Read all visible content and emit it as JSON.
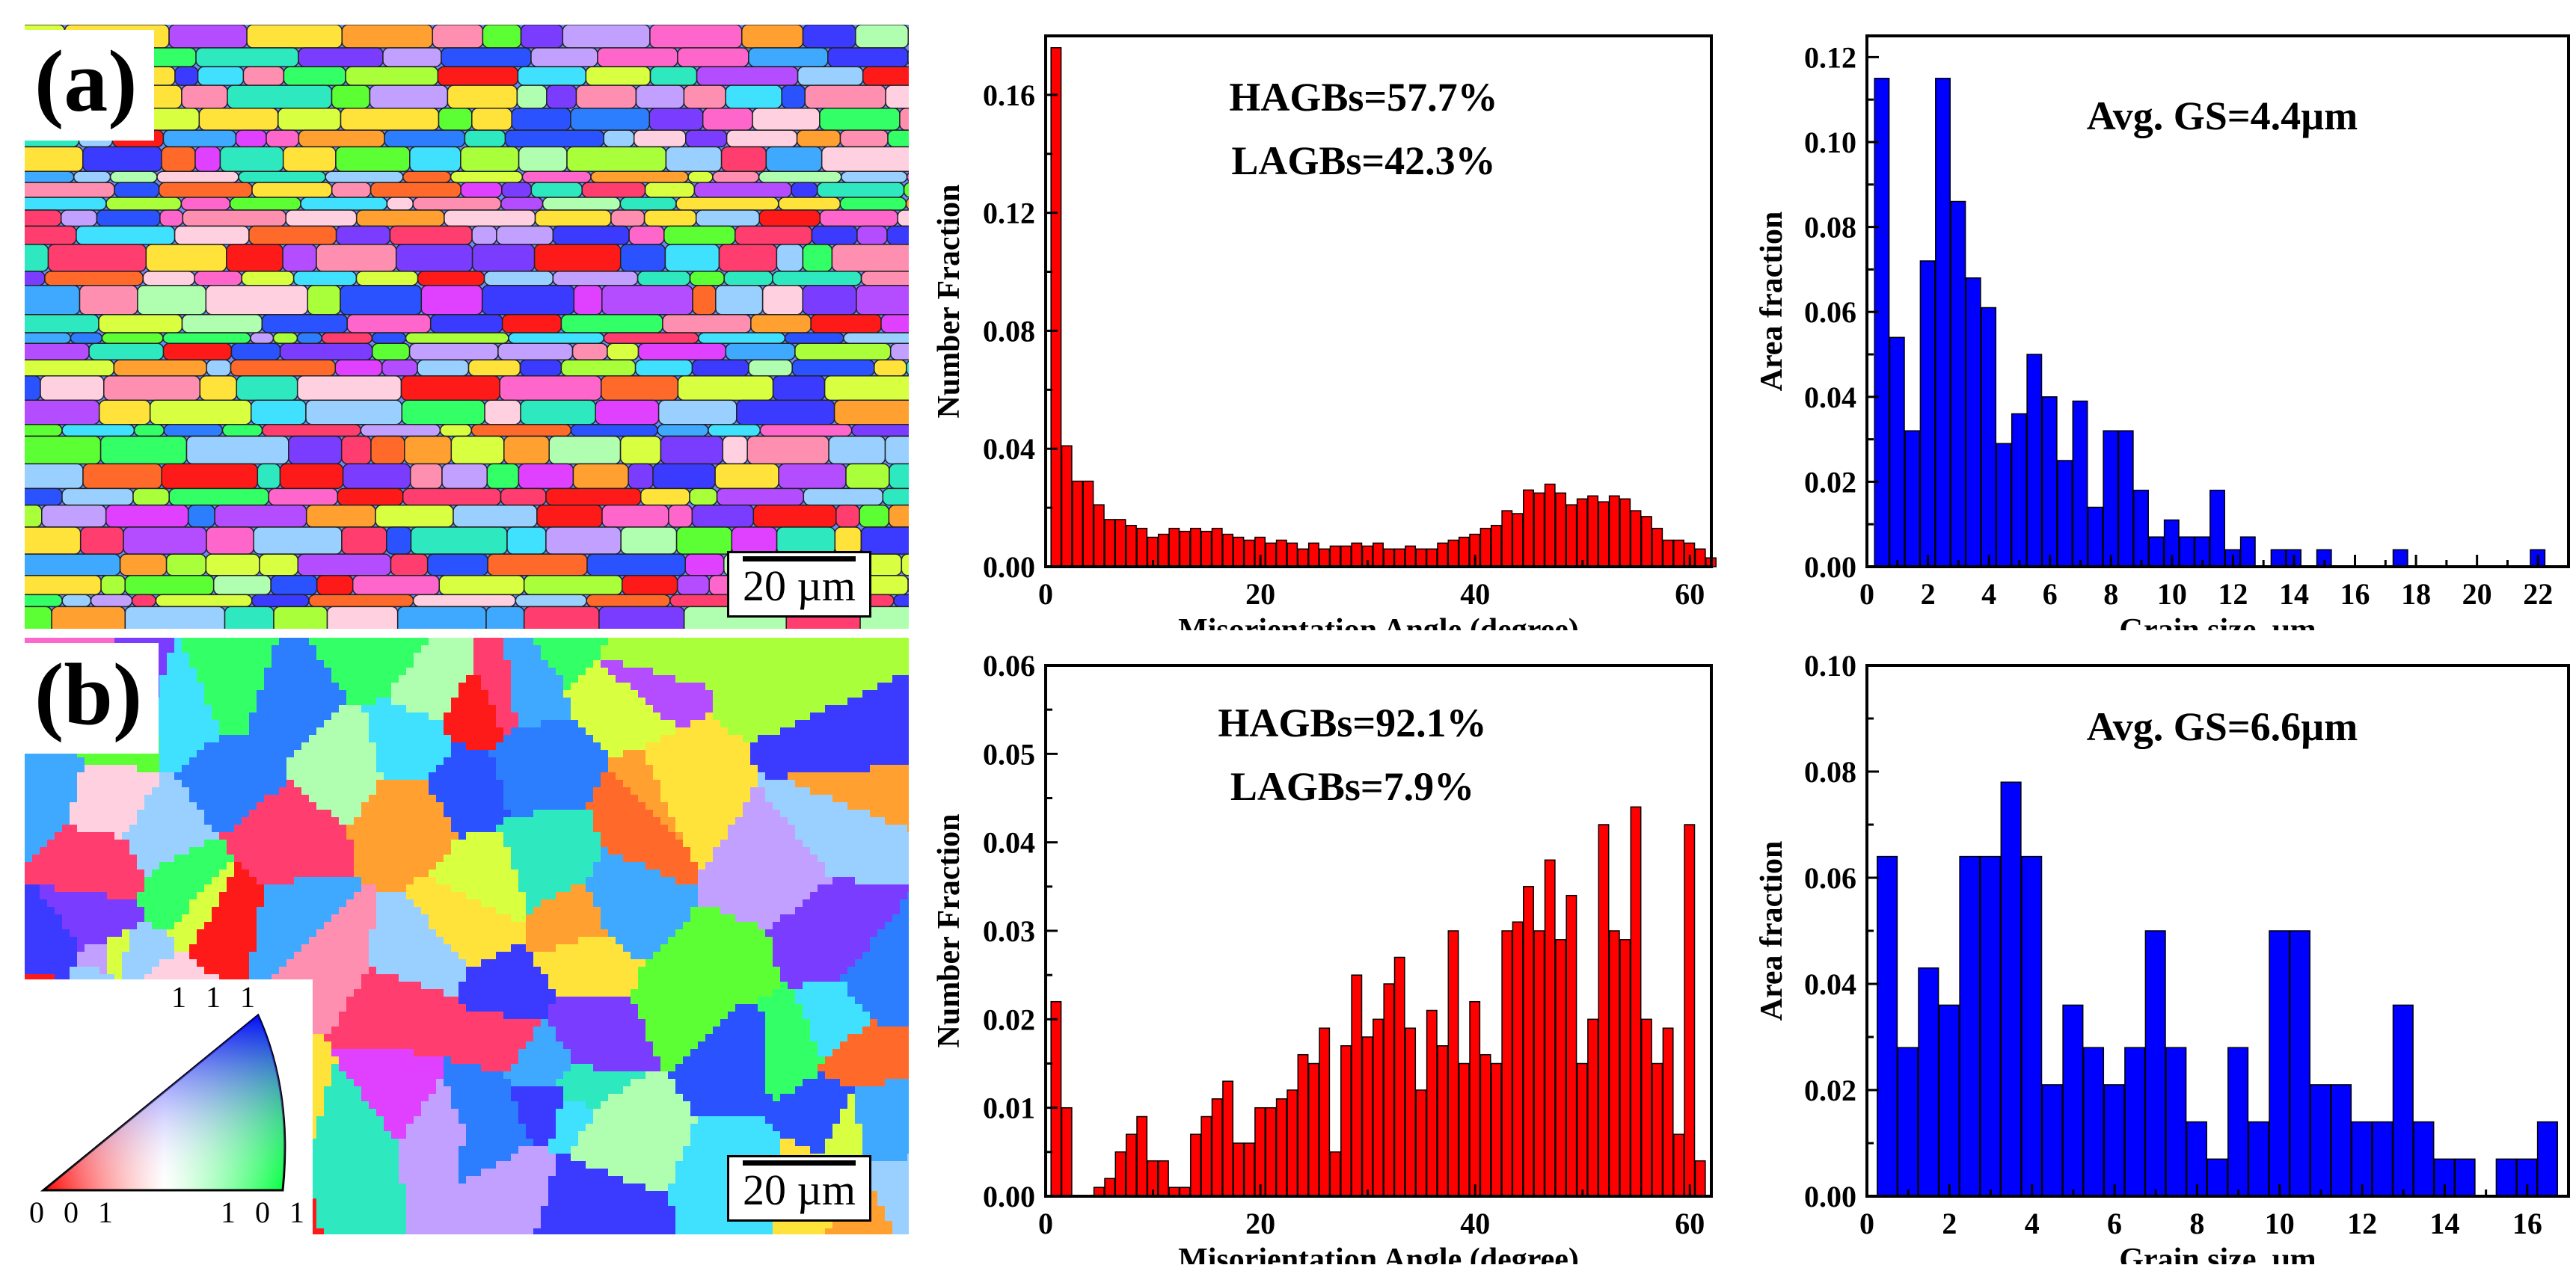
{
  "panels": {
    "a": {
      "label": "(a)",
      "scale_bar": "20 µm"
    },
    "b": {
      "label": "(b)",
      "scale_bar": "20 µm"
    }
  },
  "ipf_legend": {
    "top": "1 1 1",
    "left": "0 0 1",
    "right": "1 0 1"
  },
  "colors": {
    "red_bars": "#ff0000",
    "blue_bars": "#0000ff",
    "axis": "#000000"
  },
  "chart_data": [
    {
      "id": "chart-a-misorientation",
      "type": "bar",
      "xlabel": "Misorientation Angle (degree)",
      "ylabel": "Number Fraction",
      "annotations": [
        "HAGBs=57.7%",
        "LAGBs=42.3%"
      ],
      "xlim": [
        0,
        62
      ],
      "ylim": [
        0,
        0.18
      ],
      "xticks": [
        0,
        20,
        40,
        60
      ],
      "xtick_labels": [
        "0",
        "20",
        "40",
        "60"
      ],
      "yticks": [
        0.0,
        0.04,
        0.08,
        0.12,
        0.16
      ],
      "ytick_labels": [
        "0.00",
        "0.04",
        "0.08",
        "0.12",
        "0.16"
      ],
      "bin_start": 1,
      "bin_width": 1,
      "values": [
        0.176,
        0.041,
        0.029,
        0.029,
        0.021,
        0.016,
        0.016,
        0.014,
        0.013,
        0.01,
        0.011,
        0.013,
        0.012,
        0.013,
        0.012,
        0.013,
        0.011,
        0.01,
        0.009,
        0.01,
        0.008,
        0.009,
        0.008,
        0.006,
        0.008,
        0.006,
        0.007,
        0.007,
        0.008,
        0.007,
        0.008,
        0.006,
        0.006,
        0.007,
        0.006,
        0.006,
        0.008,
        0.009,
        0.01,
        0.011,
        0.013,
        0.014,
        0.019,
        0.018,
        0.026,
        0.025,
        0.028,
        0.025,
        0.021,
        0.023,
        0.024,
        0.022,
        0.024,
        0.023,
        0.019,
        0.017,
        0.013,
        0.009,
        0.009,
        0.008,
        0.006,
        0.003
      ],
      "color": "#ff0000"
    },
    {
      "id": "chart-a-grainsize",
      "type": "bar",
      "xlabel": "Grain size, µm",
      "ylabel": "Area fraction",
      "annotations": [
        "Avg. GS=4.4µm"
      ],
      "xlim": [
        0,
        23
      ],
      "ylim": [
        0,
        0.125
      ],
      "xticks": [
        0,
        2,
        4,
        6,
        8,
        10,
        12,
        14,
        16,
        18,
        20,
        22
      ],
      "xtick_labels": [
        "0",
        "2",
        "4",
        "6",
        "8",
        "10",
        "12",
        "14",
        "16",
        "18",
        "20",
        "22"
      ],
      "yticks": [
        0.0,
        0.02,
        0.04,
        0.06,
        0.08,
        0.1,
        0.12
      ],
      "ytick_labels": [
        "0.00",
        "0.02",
        "0.04",
        "0.06",
        "0.08",
        "0.10",
        "0.12"
      ],
      "bin_start": 0.5,
      "bin_width": 0.5,
      "values": [
        0.115,
        0.054,
        0.032,
        0.072,
        0.115,
        0.086,
        0.068,
        0.061,
        0.029,
        0.036,
        0.05,
        0.04,
        0.025,
        0.039,
        0.014,
        0.032,
        0.032,
        0.018,
        0.007,
        0.011,
        0.007,
        0.007,
        0.018,
        0.004,
        0.007,
        0,
        0.004,
        0.004,
        0,
        0.004,
        0,
        0,
        0,
        0,
        0.004,
        0,
        0,
        0,
        0,
        0,
        0,
        0,
        0,
        0.004
      ],
      "color": "#0000ff"
    },
    {
      "id": "chart-b-misorientation",
      "type": "bar",
      "xlabel": "Misorientation Angle (degree)",
      "ylabel": "Number Fraction",
      "annotations": [
        "HAGBs=92.1%",
        "LAGBs=7.9%"
      ],
      "xlim": [
        0,
        62
      ],
      "ylim": [
        0,
        0.06
      ],
      "xticks": [
        0,
        20,
        40,
        60
      ],
      "xtick_labels": [
        "0",
        "20",
        "40",
        "60"
      ],
      "yticks": [
        0.0,
        0.01,
        0.02,
        0.03,
        0.04,
        0.05,
        0.06
      ],
      "ytick_labels": [
        "0.00",
        "0.01",
        "0.02",
        "0.03",
        "0.04",
        "0.05",
        "0.06"
      ],
      "bin_start": 1,
      "bin_width": 1,
      "values": [
        0.022,
        0.01,
        0.0,
        0.0,
        0.001,
        0.002,
        0.005,
        0.007,
        0.009,
        0.004,
        0.004,
        0.001,
        0.001,
        0.007,
        0.009,
        0.011,
        0.013,
        0.006,
        0.006,
        0.01,
        0.01,
        0.011,
        0.012,
        0.016,
        0.015,
        0.019,
        0.005,
        0.017,
        0.025,
        0.018,
        0.02,
        0.024,
        0.027,
        0.019,
        0.012,
        0.021,
        0.017,
        0.03,
        0.015,
        0.022,
        0.016,
        0.015,
        0.03,
        0.031,
        0.035,
        0.03,
        0.038,
        0.029,
        0.034,
        0.015,
        0.02,
        0.042,
        0.03,
        0.029,
        0.044,
        0.02,
        0.015,
        0.019,
        0.007,
        0.042,
        0.004
      ],
      "color": "#ff0000"
    },
    {
      "id": "chart-b-grainsize",
      "type": "bar",
      "xlabel": "Grain size, µm",
      "ylabel": "Area fraction",
      "annotations": [
        "Avg. GS=6.6µm"
      ],
      "xlim": [
        0,
        17
      ],
      "ylim": [
        0,
        0.1
      ],
      "xticks": [
        0,
        2,
        4,
        6,
        8,
        10,
        12,
        14,
        16
      ],
      "xtick_labels": [
        "0",
        "2",
        "4",
        "6",
        "8",
        "10",
        "12",
        "14",
        "16"
      ],
      "yticks": [
        0.0,
        0.02,
        0.04,
        0.06,
        0.08,
        0.1
      ],
      "ytick_labels": [
        "0.00",
        "0.02",
        "0.04",
        "0.06",
        "0.08",
        "0.10"
      ],
      "bin_start": 0.5,
      "bin_width": 0.5,
      "values": [
        0.064,
        0.028,
        0.043,
        0.036,
        0.064,
        0.064,
        0.078,
        0.064,
        0.021,
        0.036,
        0.028,
        0.021,
        0.028,
        0.05,
        0.028,
        0.014,
        0.007,
        0.028,
        0.014,
        0.05,
        0.05,
        0.021,
        0.021,
        0.014,
        0.014,
        0.036,
        0.014,
        0.007,
        0.007,
        0,
        0.007,
        0.007,
        0.014
      ],
      "color": "#0000ff"
    }
  ]
}
